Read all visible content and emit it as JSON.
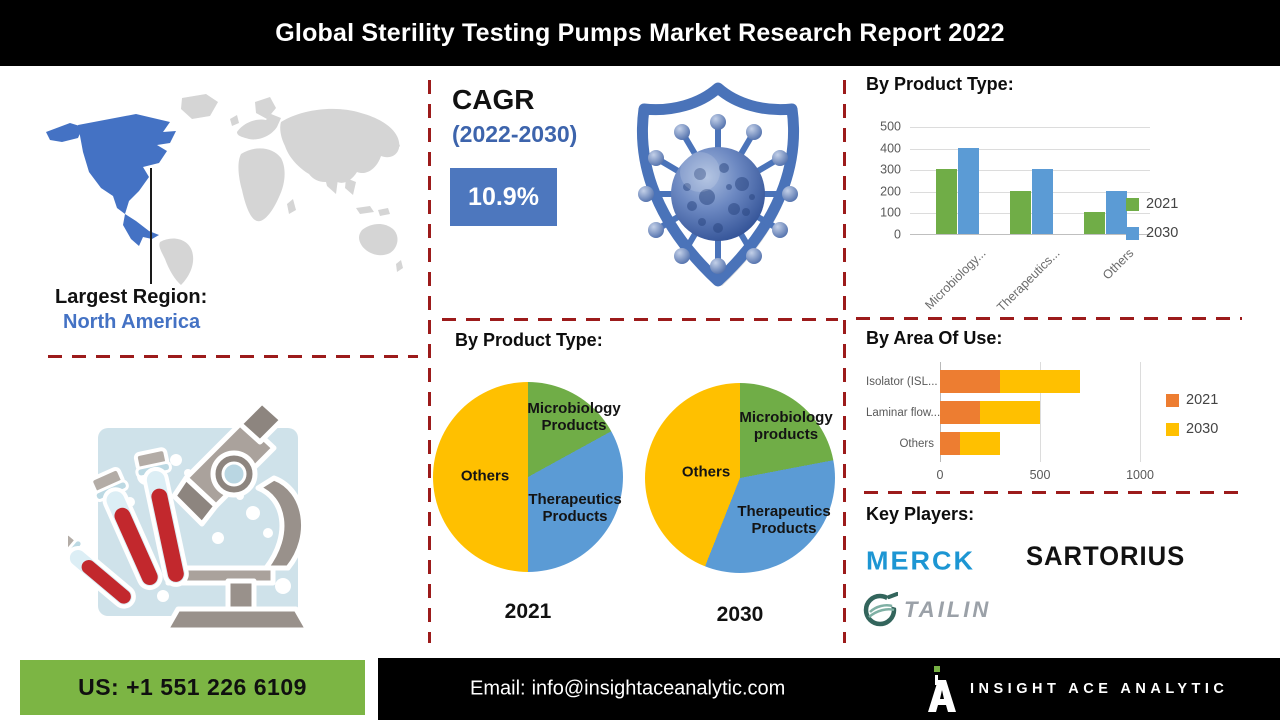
{
  "header": {
    "title": "Global Sterility Testing Pumps Market Research Report 2022"
  },
  "region": {
    "label": "Largest Region:",
    "value": "North America",
    "highlight_color": "#4472C4",
    "land_color": "#D5D5D5"
  },
  "cagr": {
    "label": "CAGR",
    "period": "(2022-2030)",
    "value": "10.9%",
    "box_color": "#4D77BE"
  },
  "sections": {
    "pie_title": "By Product Type:",
    "column_title": "By Product Type:",
    "area_title": "By Area Of Use:",
    "key_players_title": "Key Players:"
  },
  "key_players": [
    {
      "name": "MERCK",
      "color": "#1D96D3"
    },
    {
      "name": "SARTORIUS",
      "color": "#121212"
    },
    {
      "name": "TAILIN",
      "color": "#9BA1A8"
    }
  ],
  "footer": {
    "phone": "US: +1 551 226 6109",
    "phone_bg": "#7CB544",
    "email_label": "Email:",
    "email_value": "info@insightaceanalytic.com",
    "brand": "INSIGHT ACE ANALYTIC",
    "accent_green": "#76B043"
  },
  "chart_data": [
    {
      "id": "product-type-columns",
      "type": "bar",
      "title": "By Product Type:",
      "categories": [
        "Microbiology...",
        "Therapeutics...",
        "Others"
      ],
      "series": [
        {
          "name": "2021",
          "color": "#70AD47",
          "values": [
            300,
            200,
            100
          ]
        },
        {
          "name": "2030",
          "color": "#5B9BD5",
          "values": [
            400,
            300,
            200
          ]
        }
      ],
      "ylim": [
        0,
        500
      ],
      "yticks": [
        0,
        100,
        200,
        300,
        400,
        500
      ],
      "grid": true,
      "legend_position": "right"
    },
    {
      "id": "pie-2021",
      "type": "pie",
      "year_label": "2021",
      "labels": [
        "Microbiology Products",
        "Therapeutics Products",
        "Others"
      ],
      "values": [
        17,
        33,
        50
      ],
      "colors": [
        "#70AD47",
        "#5B9BD5",
        "#FFC000"
      ]
    },
    {
      "id": "pie-2030",
      "type": "pie",
      "year_label": "2030",
      "labels": [
        "Microbiology products",
        "Therapeutics Products",
        "Others"
      ],
      "values": [
        22,
        34,
        44
      ],
      "colors": [
        "#70AD47",
        "#5B9BD5",
        "#FFC000"
      ]
    },
    {
      "id": "area-of-use",
      "type": "bar",
      "orientation": "horizontal",
      "stacked": true,
      "title": "By Area Of Use:",
      "categories": [
        "Isolator (ISL...",
        "Laminar flow...",
        "Others"
      ],
      "series": [
        {
          "name": "2021",
          "color": "#ED7D31",
          "values": [
            300,
            200,
            100
          ]
        },
        {
          "name": "2030",
          "color": "#FFC000",
          "values": [
            400,
            300,
            200
          ]
        }
      ],
      "xlim": [
        0,
        1100
      ],
      "xticks": [
        0,
        500,
        1000
      ],
      "grid": true,
      "legend_position": "right"
    }
  ]
}
